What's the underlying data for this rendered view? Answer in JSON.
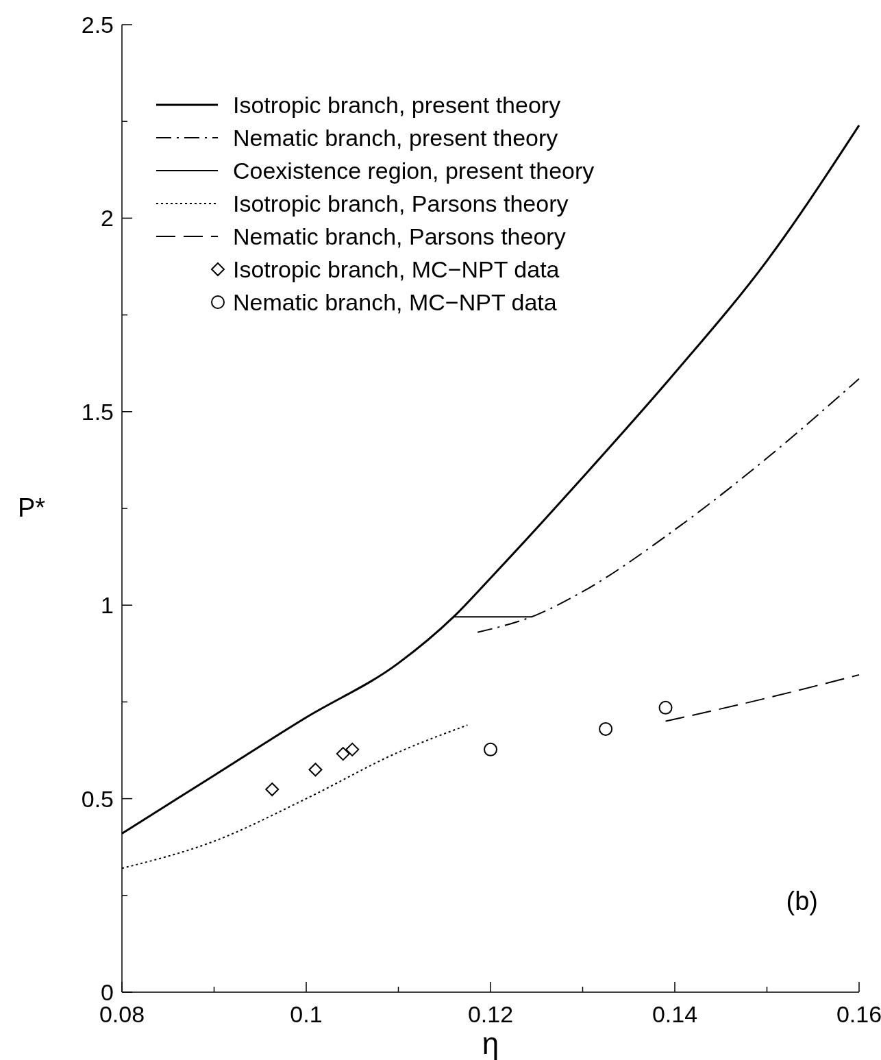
{
  "chart_data": {
    "type": "line",
    "xlabel": "η",
    "ylabel": "P*",
    "xlim": [
      0.08,
      0.16
    ],
    "xticks": [
      0.08,
      {
        "value": 0.09,
        "label": null
      },
      0.1,
      {
        "value": 0.11,
        "label": null
      },
      0.12,
      {
        "value": 0.13,
        "label": null
      },
      0.14,
      {
        "value": 0.15,
        "label": null
      },
      0.16
    ],
    "ylim": [
      0,
      2.5
    ],
    "yticks": [
      0,
      {
        "value": 0.25,
        "label": null
      },
      0.5,
      {
        "value": 0.75,
        "label": null
      },
      1,
      {
        "value": 1.25,
        "label": null
      },
      1.5,
      {
        "value": 1.75,
        "label": null
      },
      2,
      {
        "value": 2.25,
        "label": null
      },
      2.5
    ],
    "grid": false,
    "legend": "top left",
    "annotations": [
      "(b)"
    ],
    "series": [
      {
        "name": "Isotropic branch, present theory",
        "line_style": "solid",
        "color": "#000000",
        "x": [
          0.08,
          0.09,
          0.1,
          0.11,
          0.116,
          0.12,
          0.13,
          0.14,
          0.15,
          0.16
        ],
        "values": [
          0.41,
          0.56,
          0.71,
          0.85,
          0.97,
          1.07,
          1.33,
          1.6,
          1.89,
          2.24
        ]
      },
      {
        "name": "Nematic branch, present theory",
        "line_style": "dashdot",
        "color": "#000000",
        "x": [
          0.1186,
          0.125,
          0.13,
          0.14,
          0.15,
          0.16
        ],
        "values": [
          0.93,
          0.975,
          1.035,
          1.195,
          1.38,
          1.585
        ]
      },
      {
        "name": "Coexistence region, present theory",
        "line_style": "solid",
        "color": "#000000",
        "x": [
          0.116,
          0.1245
        ],
        "values": [
          0.97,
          0.97
        ]
      },
      {
        "name": "Isotropic branch, Parsons theory",
        "line_style": "dotted",
        "color": "#000000",
        "x": [
          0.08,
          0.09,
          0.1,
          0.11,
          0.1175
        ],
        "values": [
          0.32,
          0.39,
          0.5,
          0.62,
          0.69
        ]
      },
      {
        "name": "Nematic branch, Parsons theory",
        "line_style": "dashed",
        "color": "#000000",
        "x": [
          0.139,
          0.15,
          0.16
        ],
        "values": [
          0.7,
          0.76,
          0.82
        ]
      },
      {
        "name": "Isotropic branch, MC−NPT data",
        "type": "scatter",
        "marker": "diamond",
        "color": "#000000",
        "x": [
          0.0963,
          0.101,
          0.104,
          0.105
        ],
        "values": [
          0.524,
          0.575,
          0.616,
          0.627
        ]
      },
      {
        "name": "Nematic branch, MC−NPT data",
        "type": "scatter",
        "marker": "circle",
        "color": "#000000",
        "x": [
          0.12,
          0.1325,
          0.139
        ],
        "values": [
          0.627,
          0.68,
          0.735
        ]
      }
    ]
  }
}
